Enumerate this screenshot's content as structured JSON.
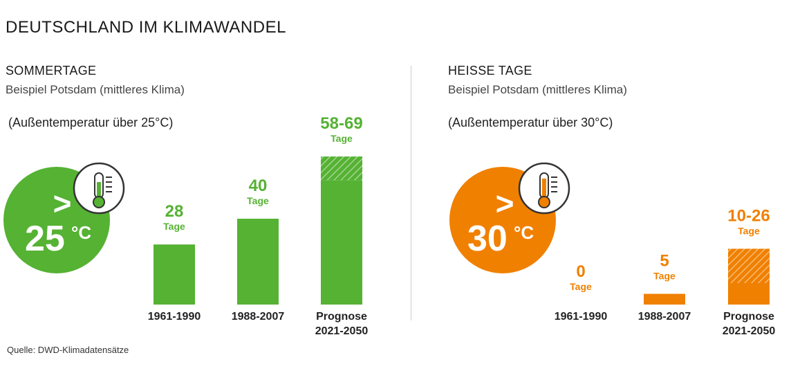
{
  "title": "DEUTSCHLAND IM KLIMAWANDEL",
  "source": "Quelle: DWD-Klimadatensätze",
  "colors": {
    "green": "#55b233",
    "orange": "#f08000",
    "text": "#222222"
  },
  "panels": [
    {
      "title": "SOMMERTAGE",
      "subtitle": "Beispiel Potsdam (mittleres Klima)",
      "condition": "(Außentemperatur über 25°C)",
      "badge": {
        "symbol": ">",
        "value": "25",
        "unit": "°C",
        "icon": "thermometer-icon"
      }
    },
    {
      "title": "HEISSE TAGE",
      "subtitle": "Beispiel Potsdam (mittleres Klima)",
      "condition": "(Außentemperatur über 30°C)",
      "badge": {
        "symbol": ">",
        "value": "30",
        "unit": "°C",
        "icon": "thermometer-icon"
      }
    }
  ],
  "chart_data": [
    {
      "type": "bar",
      "title": "SOMMERTAGE",
      "categories": [
        [
          "1961-1990"
        ],
        [
          "1988-2007"
        ],
        [
          "Prognose",
          "2021-2050"
        ]
      ],
      "values": [
        28,
        40,
        [
          58,
          69
        ]
      ],
      "labels": [
        "28",
        "40",
        "58-69"
      ],
      "unit_label": "Tage",
      "color": "#55b233",
      "ylim": [
        0,
        70
      ]
    },
    {
      "type": "bar",
      "title": "HEISSE TAGE",
      "categories": [
        [
          "1961-1990"
        ],
        [
          "1988-2007"
        ],
        [
          "Prognose",
          "2021-2050"
        ]
      ],
      "values": [
        0,
        5,
        [
          10,
          26
        ]
      ],
      "labels": [
        "0",
        "5",
        "10-26"
      ],
      "unit_label": "Tage",
      "color": "#f08000",
      "ylim": [
        0,
        70
      ]
    }
  ]
}
